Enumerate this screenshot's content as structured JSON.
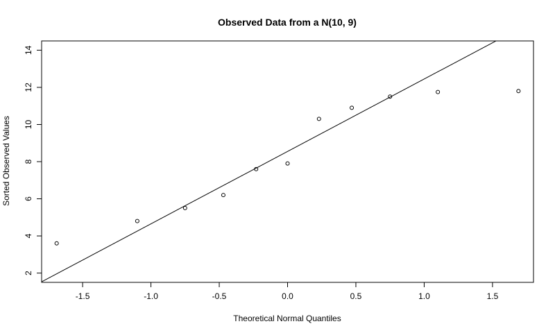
{
  "chart_data": {
    "type": "scatter",
    "title": "Observed Data from a N(10, 9)",
    "xlabel": "Theoretical Normal Quantiles",
    "ylabel": "Sorted Observed Values",
    "xlim": [
      -1.8,
      1.8
    ],
    "ylim": [
      1.5,
      14.5
    ],
    "x_ticks": [
      -1.5,
      -1.0,
      -0.5,
      0.0,
      0.5,
      1.0,
      1.5
    ],
    "x_tick_labels": [
      "-1.5",
      "-1.0",
      "-0.5",
      "0.0",
      "0.5",
      "1.0",
      "1.5"
    ],
    "y_ticks": [
      2,
      4,
      6,
      8,
      10,
      12,
      14
    ],
    "y_tick_labels": [
      "2",
      "4",
      "6",
      "8",
      "10",
      "12",
      "14"
    ],
    "grid": false,
    "points": [
      {
        "x": -1.69,
        "y": 3.6
      },
      {
        "x": -1.1,
        "y": 4.8
      },
      {
        "x": -0.75,
        "y": 5.5
      },
      {
        "x": -0.47,
        "y": 6.2
      },
      {
        "x": -0.23,
        "y": 7.6
      },
      {
        "x": 0.0,
        "y": 7.9
      },
      {
        "x": 0.23,
        "y": 10.3
      },
      {
        "x": 0.47,
        "y": 10.9
      },
      {
        "x": 0.75,
        "y": 11.5
      },
      {
        "x": 1.1,
        "y": 11.75
      },
      {
        "x": 1.69,
        "y": 11.8
      }
    ],
    "reference_line": {
      "intercept": 8.55,
      "slope": 3.9
    }
  }
}
